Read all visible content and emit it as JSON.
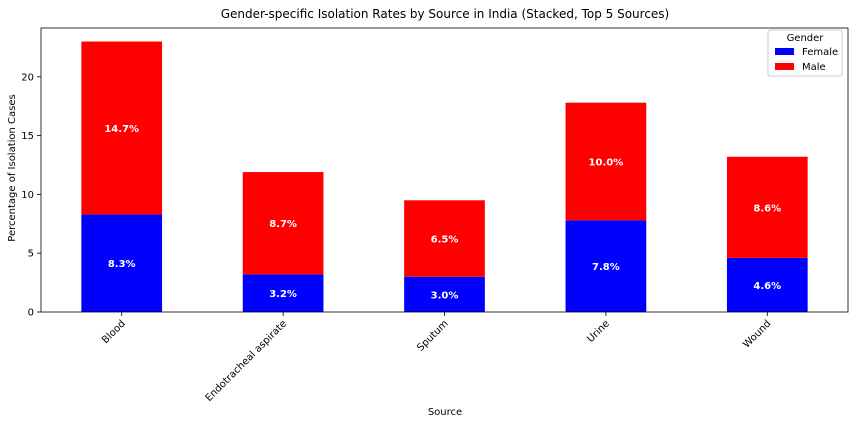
{
  "chart_data": {
    "type": "bar",
    "stacked": true,
    "title": "Gender-specific Isolation Rates by Source in India (Stacked, Top 5 Sources)",
    "xlabel": "Source",
    "ylabel": "Percentage of Isolation Cases",
    "categories": [
      "Blood",
      "Endotracheal aspirate",
      "Sputum",
      "Urine",
      "Wound"
    ],
    "series": [
      {
        "name": "Female",
        "color": "#0000ff",
        "values": [
          8.3,
          3.2,
          3.0,
          7.8,
          4.6
        ],
        "labels": [
          "8.3%",
          "3.2%",
          "3.0%",
          "7.8%",
          "4.6%"
        ]
      },
      {
        "name": "Male",
        "color": "#ff0000",
        "values": [
          14.7,
          8.7,
          6.5,
          10.0,
          8.6
        ],
        "labels": [
          "14.7%",
          "8.7%",
          "6.5%",
          "10.0%",
          "8.6%"
        ]
      }
    ],
    "ylim": [
      0,
      24.15
    ],
    "yticks": [
      0,
      5,
      10,
      15,
      20
    ],
    "ytick_labels": [
      "0",
      "5",
      "10",
      "15",
      "20"
    ],
    "legend": {
      "title": "Gender",
      "position": "top-right"
    }
  }
}
